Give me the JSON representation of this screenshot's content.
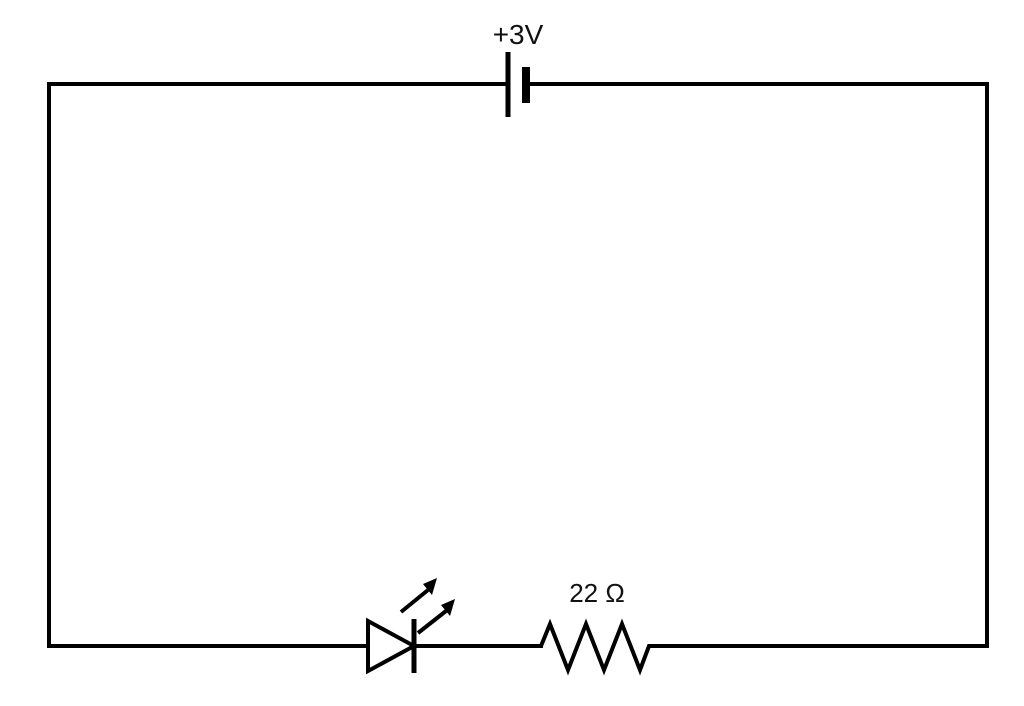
{
  "diagram": {
    "battery": {
      "label": "+3V"
    },
    "resistor": {
      "label": "22 Ω"
    },
    "led": {},
    "colors": {
      "wire": "#000000",
      "background": "#ffffff"
    }
  }
}
